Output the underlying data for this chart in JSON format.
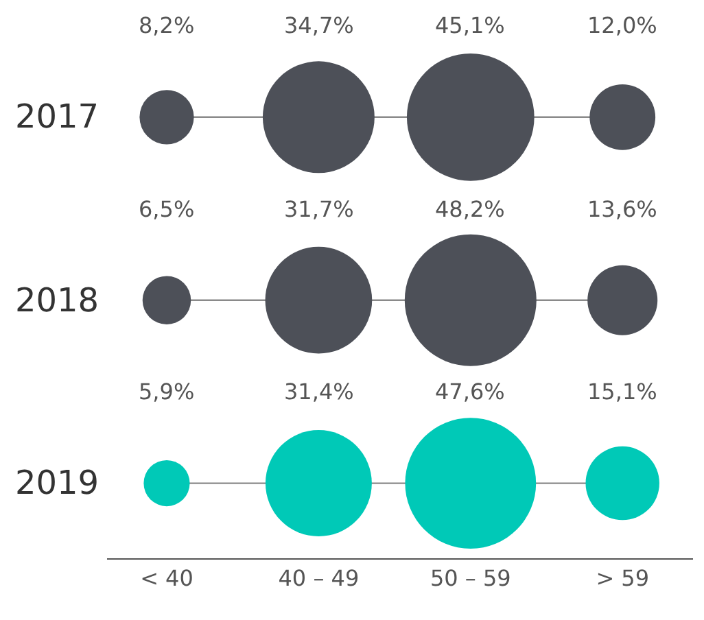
{
  "chart_data": {
    "type": "other",
    "categories": [
      "< 40",
      "40 – 49",
      "50 – 59",
      "> 59"
    ],
    "series": [
      {
        "name": "2017",
        "color": "#4d5058",
        "values": [
          8.2,
          34.7,
          45.1,
          12.0
        ],
        "value_labels": [
          "8,2%",
          "34,7%",
          "45,1%",
          "12,0%"
        ]
      },
      {
        "name": "2018",
        "color": "#4d5058",
        "values": [
          6.5,
          31.7,
          48.2,
          13.6
        ],
        "value_labels": [
          "6,5%",
          "31,7%",
          "48,2%",
          "13,6%"
        ]
      },
      {
        "name": "2019",
        "color": "#00c9b7",
        "values": [
          5.9,
          31.4,
          47.6,
          15.1
        ],
        "value_labels": [
          "5,9%",
          "31,4%",
          "47,6%",
          "15,1%"
        ]
      }
    ],
    "legend": "left"
  }
}
